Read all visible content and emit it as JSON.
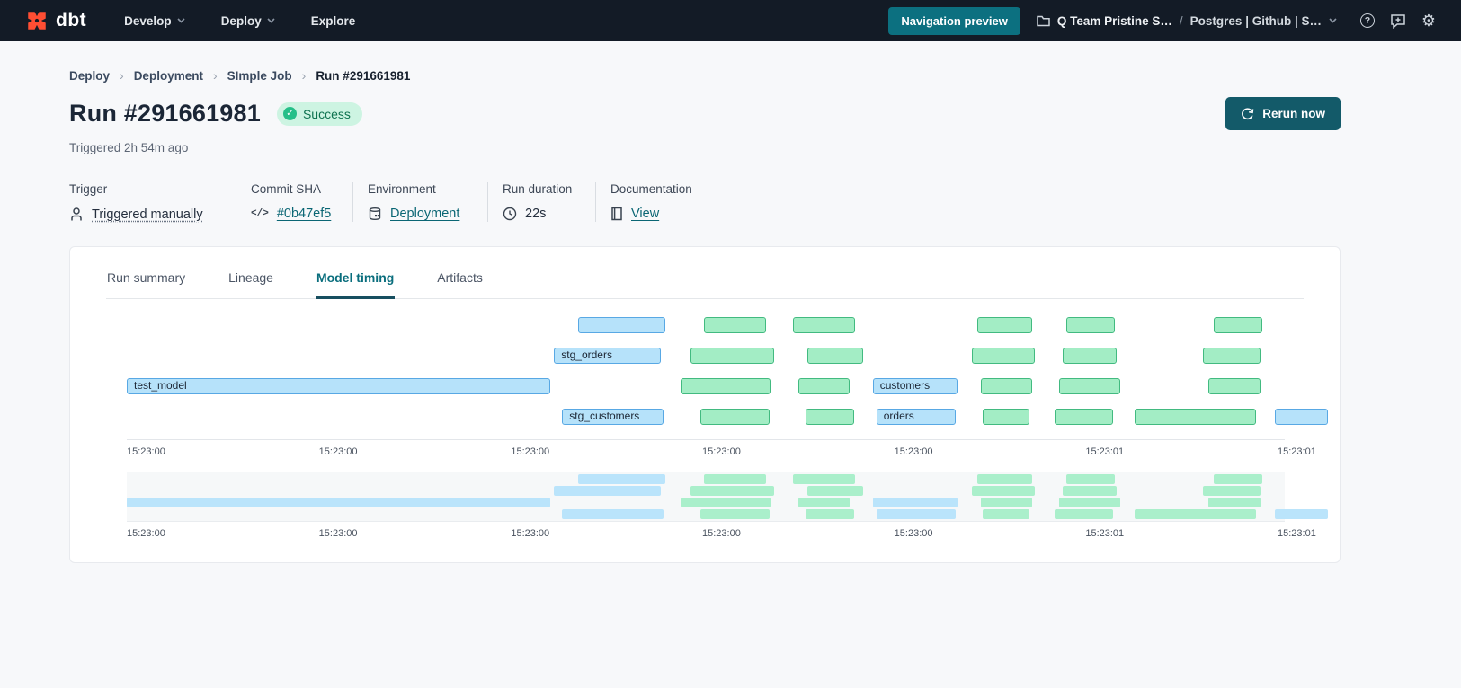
{
  "nav": {
    "logo_text": "dbt",
    "items": [
      {
        "label": "Develop",
        "chevron": true
      },
      {
        "label": "Deploy",
        "chevron": true
      },
      {
        "label": "Explore",
        "chevron": false
      }
    ],
    "preview_button": "Navigation preview",
    "account": "Q Team Pristine S…",
    "sep": "/",
    "project": "Postgres | Github | S…",
    "help_glyph": "?",
    "gear_glyph": "⚙"
  },
  "breadcrumb": [
    "Deploy",
    "Deployment",
    "SImple Job",
    "Run #291661981"
  ],
  "header": {
    "title": "Run #291661981",
    "status_label": "Success",
    "status_check": "✓",
    "subtitle": "Triggered 2h 54m ago",
    "rerun_label": "Rerun now"
  },
  "meta": [
    {
      "label": "Trigger",
      "value": "Triggered manually",
      "icon": "person-icon",
      "style": "dotted"
    },
    {
      "label": "Commit SHA",
      "value": "#0b47ef5",
      "icon": "code-icon",
      "style": "link"
    },
    {
      "label": "Environment",
      "value": "Deployment",
      "icon": "database-icon",
      "style": "link"
    },
    {
      "label": "Run duration",
      "value": "22s",
      "icon": "clock-icon",
      "style": "plain"
    },
    {
      "label": "Documentation",
      "value": "View",
      "icon": "document-icon",
      "style": "link"
    }
  ],
  "tabs": [
    {
      "label": "Run summary",
      "active": false
    },
    {
      "label": "Lineage",
      "active": false
    },
    {
      "label": "Model timing",
      "active": true
    },
    {
      "label": "Artifacts",
      "active": false
    }
  ],
  "chart_data": {
    "type": "gantt",
    "title": "Model timing",
    "legend": "blue bars = models (labeled), green bars = tests",
    "x_axis": {
      "tick_labels": [
        "15:23:00",
        "15:23:00",
        "15:23:00",
        "15:23:00",
        "15:23:00",
        "15:23:01",
        "15:23:01"
      ],
      "tick_positions_pct": [
        0,
        16.59,
        33.18,
        49.69,
        66.28,
        82.79,
        99.38
      ]
    },
    "colors": {
      "model_fill": "#b6e2fa",
      "model_border": "#58a8e4",
      "test_fill": "#a3edc5",
      "test_border": "#42ba80"
    },
    "rows": [
      [
        {
          "color": "blue",
          "start_pct": 38.99,
          "end_pct": 46.51
        },
        {
          "color": "green",
          "start_pct": 49.84,
          "end_pct": 55.19
        },
        {
          "color": "green",
          "start_pct": 57.52,
          "end_pct": 62.87
        },
        {
          "color": "green",
          "start_pct": 73.41,
          "end_pct": 78.22
        },
        {
          "color": "green",
          "start_pct": 81.16,
          "end_pct": 85.35
        },
        {
          "color": "green",
          "start_pct": 93.88,
          "end_pct": 98.06
        }
      ],
      [
        {
          "color": "blue",
          "label": "stg_orders",
          "start_pct": 36.9,
          "end_pct": 46.12
        },
        {
          "color": "green",
          "start_pct": 48.68,
          "end_pct": 55.89
        },
        {
          "color": "green",
          "start_pct": 58.76,
          "end_pct": 63.57
        },
        {
          "color": "green",
          "start_pct": 72.95,
          "end_pct": 78.45
        },
        {
          "color": "green",
          "start_pct": 80.85,
          "end_pct": 85.5
        },
        {
          "color": "green",
          "start_pct": 92.95,
          "end_pct": 97.91
        }
      ],
      [
        {
          "color": "blue",
          "label": "test_model",
          "start_pct": 0,
          "end_pct": 36.59
        },
        {
          "color": "green",
          "start_pct": 47.83,
          "end_pct": 55.58
        },
        {
          "color": "green",
          "start_pct": 57.98,
          "end_pct": 62.4
        },
        {
          "color": "blue",
          "label": "customers",
          "start_pct": 64.42,
          "end_pct": 71.71
        },
        {
          "color": "green",
          "start_pct": 73.72,
          "end_pct": 78.22
        },
        {
          "color": "green",
          "start_pct": 80.54,
          "end_pct": 85.81
        },
        {
          "color": "green",
          "start_pct": 93.41,
          "end_pct": 97.91
        }
      ],
      [
        {
          "color": "blue",
          "label": "stg_customers",
          "start_pct": 37.6,
          "end_pct": 46.36
        },
        {
          "color": "green",
          "start_pct": 49.53,
          "end_pct": 55.5
        },
        {
          "color": "green",
          "start_pct": 58.6,
          "end_pct": 62.79
        },
        {
          "color": "blue",
          "label": "orders",
          "start_pct": 64.73,
          "end_pct": 71.55
        },
        {
          "color": "green",
          "start_pct": 73.88,
          "end_pct": 77.98
        },
        {
          "color": "green",
          "start_pct": 80.16,
          "end_pct": 85.19
        },
        {
          "color": "green",
          "start_pct": 87.05,
          "end_pct": 97.52
        },
        {
          "color": "blue",
          "start_pct": 99.15,
          "end_pct": 103.72
        }
      ]
    ]
  }
}
